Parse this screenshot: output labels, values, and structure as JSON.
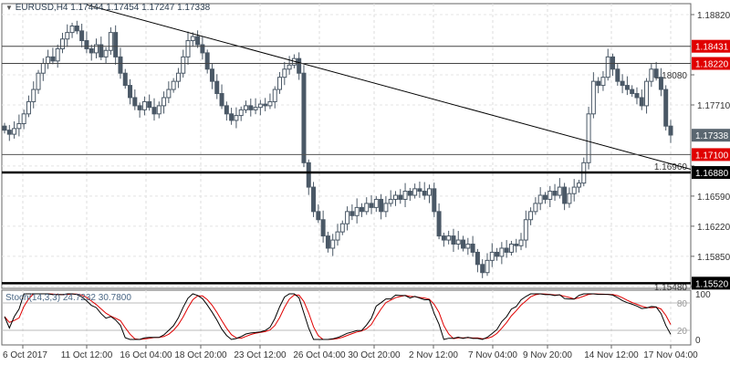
{
  "header": {
    "symbol_timeframe": "EURUSD,H4",
    "open": "1.17444",
    "high": "1.17454",
    "low": "1.17247",
    "close": "1.17338",
    "menu_icon": "triangle-down-icon"
  },
  "indicator": {
    "label": "Stoch(14,3,3)",
    "main_value": "24.7232",
    "signal_value": "30.7800",
    "scale_top": "100",
    "scale_bottom": "0",
    "level_high": "80",
    "level_low": "20"
  },
  "colors": {
    "candle": "#4a5866",
    "resistance": "#e00000",
    "support": "#000000",
    "current": "#5a6670",
    "k_line": "#000000",
    "d_line": "#e00000"
  },
  "chart_data": {
    "type": "candlestick",
    "title": "EURUSD,H4",
    "ylim": [
      1.1542,
      1.1892
    ],
    "y_ticks": [
      "1.18820",
      "1.18080",
      "1.17710",
      "1.16960",
      "1.16590",
      "1.16220",
      "1.15850",
      "1.15480"
    ],
    "x_ticks": [
      "6 Oct 2017",
      "11 Oct 12:00",
      "16 Oct 04:00",
      "18 Oct 20:00",
      "23 Oct 12:00",
      "26 Oct 04:00",
      "30 Oct 20:00",
      "2 Nov 12:00",
      "7 Nov 04:00",
      "9 Nov 20:00",
      "14 Nov 12:00",
      "17 Nov 04:00"
    ],
    "closes": [
      1.174,
      1.1735,
      1.1742,
      1.1748,
      1.176,
      1.1775,
      1.179,
      1.181,
      1.1822,
      1.183,
      1.1825,
      1.184,
      1.1852,
      1.186,
      1.1868,
      1.1862,
      1.185,
      1.184,
      1.1835,
      1.1845,
      1.183,
      1.1838,
      1.186,
      1.183,
      1.181,
      1.1795,
      1.178,
      1.177,
      1.1765,
      1.1775,
      1.1768,
      1.176,
      1.177,
      1.178,
      1.179,
      1.18,
      1.181,
      1.183,
      1.185,
      1.1855,
      1.1845,
      1.1835,
      1.1815,
      1.18,
      1.1785,
      1.177,
      1.176,
      1.1752,
      1.1758,
      1.1765,
      1.177,
      1.1765,
      1.1768,
      1.1772,
      1.177,
      1.1775,
      1.179,
      1.1805,
      1.1815,
      1.182,
      1.1828,
      1.181,
      1.17,
      1.167,
      1.164,
      1.163,
      1.161,
      1.1595,
      1.1605,
      1.1615,
      1.1625,
      1.164,
      1.1635,
      1.1645,
      1.164,
      1.165,
      1.1645,
      1.1655,
      1.164,
      1.165,
      1.1655,
      1.166,
      1.1655,
      1.1665,
      1.166,
      1.1668,
      1.1665,
      1.166,
      1.1668,
      1.164,
      1.161,
      1.1605,
      1.161,
      1.16,
      1.1605,
      1.1595,
      1.16,
      1.159,
      1.1575,
      1.1565,
      1.158,
      1.159,
      1.1585,
      1.1595,
      1.159,
      1.16,
      1.1598,
      1.1605,
      1.163,
      1.164,
      1.165,
      1.166,
      1.1655,
      1.1665,
      1.166,
      1.167,
      1.165,
      1.1662,
      1.167,
      1.1675,
      1.17,
      1.176,
      1.18,
      1.1795,
      1.1805,
      1.183,
      1.1815,
      1.18,
      1.1795,
      1.179,
      1.1785,
      1.178,
      1.177,
      1.18,
      1.1815,
      1.1805,
      1.179,
      1.1745,
      1.1734
    ],
    "horizontal_levels": [
      {
        "label": "1.18431",
        "value": 1.18431,
        "kind": "resistance"
      },
      {
        "label": "1.18220",
        "value": 1.1822,
        "kind": "resistance"
      },
      {
        "label": "1.17100",
        "value": 1.171,
        "kind": "resistance"
      },
      {
        "label": "1.16880",
        "value": 1.1688,
        "kind": "support"
      },
      {
        "label": "1.15520",
        "value": 1.1552,
        "kind": "support"
      }
    ],
    "current_price": {
      "label": "1.17338",
      "value": 1.17338
    },
    "trendline": {
      "from": {
        "x_tick": "11 Oct 12:00",
        "price": 1.1894
      },
      "to": {
        "x_tick": "17 Nov 04:00",
        "price": 1.1692
      }
    }
  }
}
